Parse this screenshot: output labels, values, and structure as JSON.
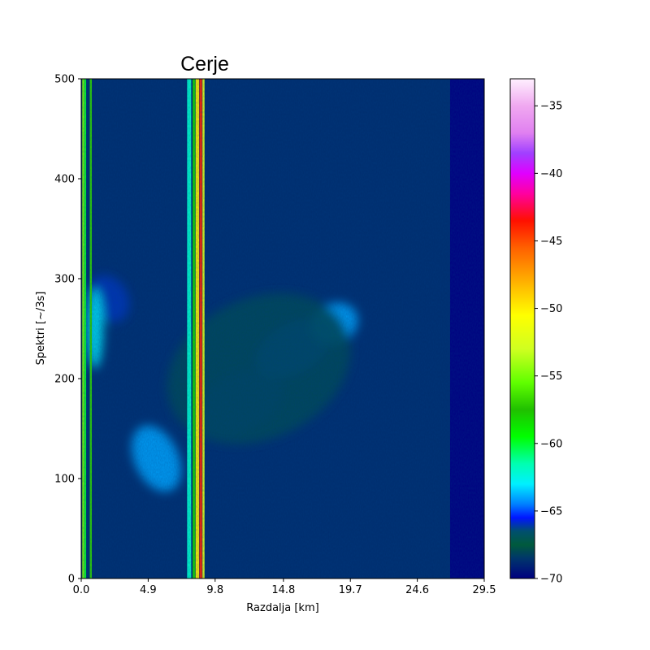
{
  "chart_data": {
    "type": "heatmap",
    "title": "Cerje",
    "xlabel": "Razdalja [km]",
    "ylabel": "Spektri [~/3s]",
    "xlim": [
      0.0,
      29.5
    ],
    "ylim": [
      0,
      500
    ],
    "xticks": [
      "0.0",
      "4.9",
      "9.8",
      "14.8",
      "19.7",
      "24.6",
      "29.5"
    ],
    "yticks": [
      0,
      100,
      200,
      300,
      400,
      500
    ],
    "colorbar": {
      "min": -70,
      "max": -33,
      "ticks": [
        "−35",
        "−40",
        "−45",
        "−50",
        "−55",
        "−60",
        "−65",
        "−70"
      ],
      "tick_values": [
        -35,
        -40,
        -45,
        -50,
        -55,
        -60,
        -65,
        -70
      ],
      "colormap": "gist_ncar",
      "stops": [
        {
          "v": -70.0,
          "color": "#000080"
        },
        {
          "v": -68.5,
          "color": "#00366b"
        },
        {
          "v": -67.5,
          "color": "#005a3c"
        },
        {
          "v": -66.5,
          "color": "#004f6e"
        },
        {
          "v": -65.5,
          "color": "#0016ff"
        },
        {
          "v": -64.5,
          "color": "#0080ff"
        },
        {
          "v": -63.0,
          "color": "#00f0ff"
        },
        {
          "v": -61.5,
          "color": "#00ffb0"
        },
        {
          "v": -59.5,
          "color": "#00ff00"
        },
        {
          "v": -57.5,
          "color": "#20c000"
        },
        {
          "v": -55.5,
          "color": "#60ff00"
        },
        {
          "v": -53.0,
          "color": "#d0ff20"
        },
        {
          "v": -50.5,
          "color": "#ffff00"
        },
        {
          "v": -48.0,
          "color": "#ffb000"
        },
        {
          "v": -45.5,
          "color": "#ff6000"
        },
        {
          "v": -43.5,
          "color": "#ff1000"
        },
        {
          "v": -41.5,
          "color": "#ff00a0"
        },
        {
          "v": -40.0,
          "color": "#e000ff"
        },
        {
          "v": -38.5,
          "color": "#a040ff"
        },
        {
          "v": -37.0,
          "color": "#e080f0"
        },
        {
          "v": -35.0,
          "color": "#f0a8f0"
        },
        {
          "v": -33.0,
          "color": "#fff0ff"
        }
      ]
    },
    "background_level": -70,
    "noise_floor_level": -68.5,
    "noise_floor_extent_km": 27.0,
    "vertical_lines": [
      {
        "x_km": 0.15,
        "width_km": 0.15,
        "level": -55
      },
      {
        "x_km": 0.3,
        "width_km": 0.12,
        "level": -60
      },
      {
        "x_km": 0.7,
        "width_km": 0.15,
        "level": -57
      },
      {
        "x_km": 7.9,
        "width_km": 0.3,
        "level": -62
      },
      {
        "x_km": 8.25,
        "width_km": 0.2,
        "level": -58
      },
      {
        "x_km": 8.5,
        "width_km": 0.25,
        "level": -50
      },
      {
        "x_km": 8.75,
        "width_km": 0.2,
        "level": -44
      },
      {
        "x_km": 8.95,
        "width_km": 0.15,
        "level": -52
      }
    ],
    "echo_regions": [
      {
        "x_km": 2.0,
        "y": 280,
        "rx_km": 1.4,
        "ry": 25,
        "angle_deg": 30,
        "level": -66
      },
      {
        "x_km": 1.0,
        "y": 250,
        "rx_km": 0.6,
        "ry": 40,
        "angle_deg": 0,
        "level": -63
      },
      {
        "x_km": 5.5,
        "y": 120,
        "rx_km": 1.6,
        "ry": 35,
        "angle_deg": 25,
        "level": -64
      },
      {
        "x_km": 11.5,
        "y": 175,
        "rx_km": 3.5,
        "ry": 30,
        "angle_deg": 25,
        "level": -66
      },
      {
        "x_km": 15.5,
        "y": 230,
        "rx_km": 3.0,
        "ry": 25,
        "angle_deg": 30,
        "level": -65
      },
      {
        "x_km": 18.5,
        "y": 255,
        "rx_km": 1.8,
        "ry": 20,
        "angle_deg": 25,
        "level": -64
      },
      {
        "x_km": 13.0,
        "y": 210,
        "rx_km": 7.0,
        "ry": 70,
        "angle_deg": 25,
        "level": -68
      }
    ]
  }
}
